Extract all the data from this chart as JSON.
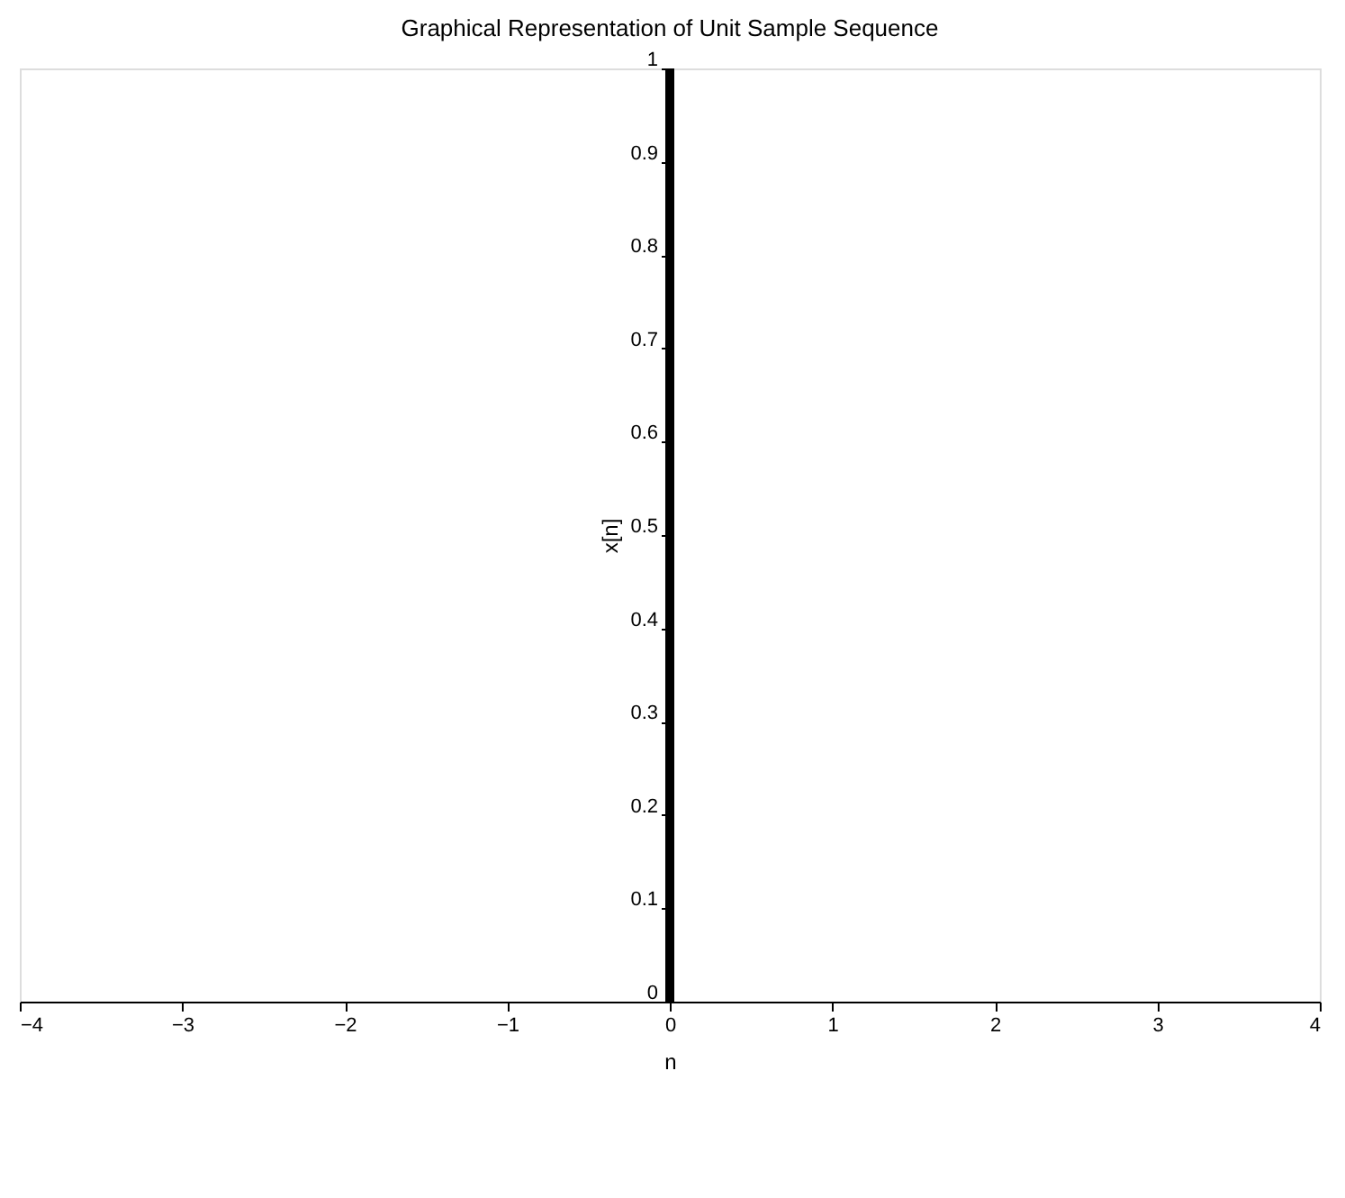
{
  "chart_data": {
    "type": "bar",
    "title": "Graphical Representation of Unit Sample Sequence",
    "xlabel": "n",
    "ylabel": "x[n]",
    "x": [
      0
    ],
    "values": [
      1
    ],
    "color": "#000000",
    "xlim": [
      -4,
      4
    ],
    "xticks": [
      -4,
      -3,
      -2,
      -1,
      0,
      1,
      2,
      3,
      4
    ],
    "ylim": [
      0,
      1
    ],
    "yticks": [
      0,
      0.1,
      0.2,
      0.3,
      0.4,
      0.5,
      0.6,
      0.7,
      0.8,
      0.9,
      1
    ],
    "grid": false
  }
}
